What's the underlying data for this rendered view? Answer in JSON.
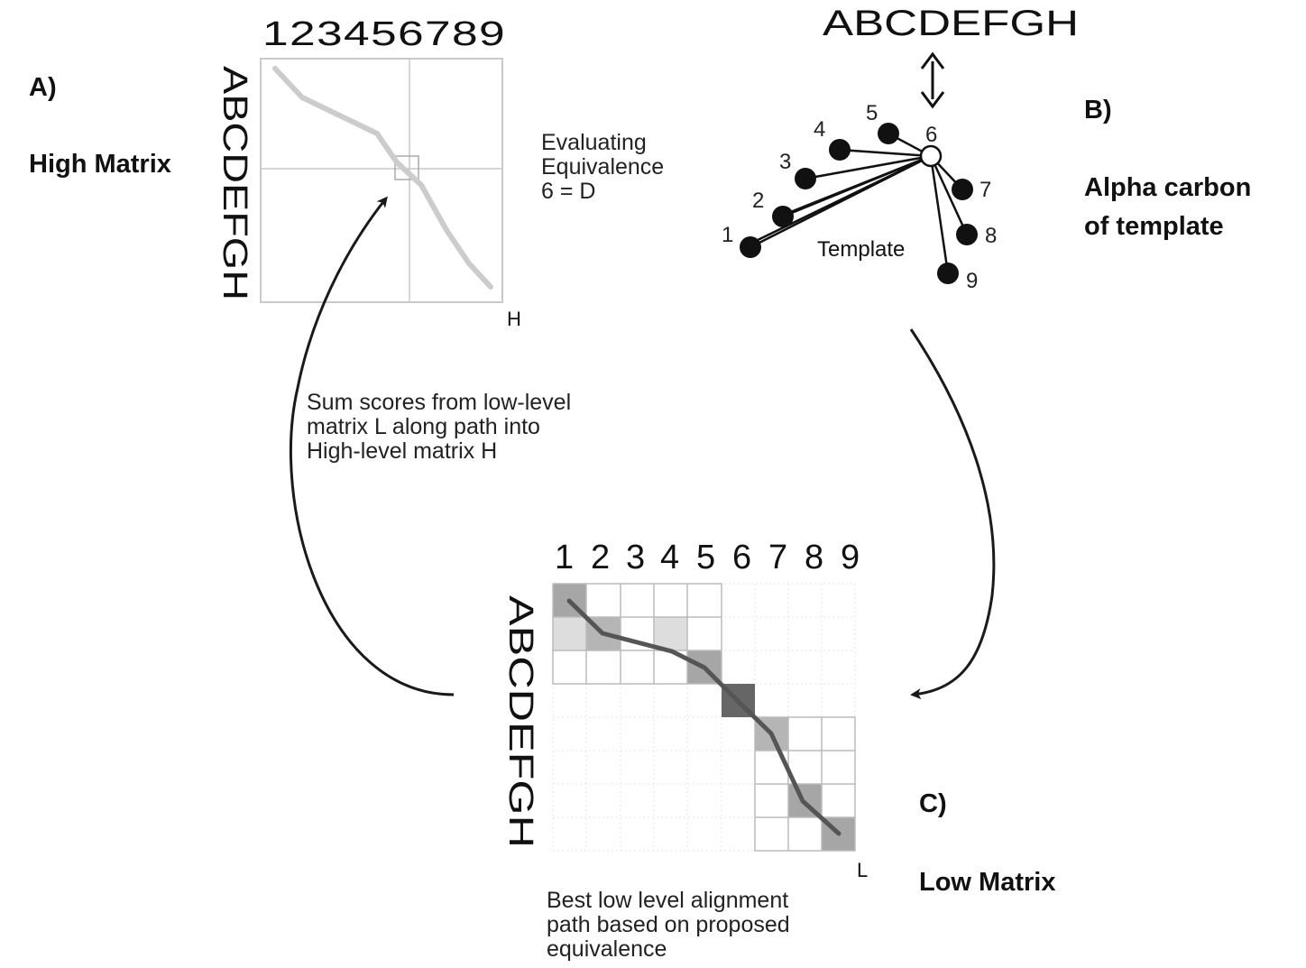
{
  "panel_a": {
    "tag": "A)",
    "title": "High Matrix",
    "column_header": "123456789",
    "row_header": "ABCDEFGH",
    "corner_label": "H"
  },
  "panel_b": {
    "tag": "B)",
    "title_line1": "Alpha carbon",
    "title_line2": "of template",
    "sequence": "ABCDEFGH",
    "template_label": "Template",
    "atoms": [
      "1",
      "2",
      "3",
      "4",
      "5",
      "6",
      "7",
      "8",
      "9"
    ]
  },
  "panel_c": {
    "tag": "C)",
    "title": "Low Matrix",
    "column_header": [
      "1",
      "2",
      "3",
      "4",
      "5",
      "6",
      "7",
      "8",
      "9"
    ],
    "row_header": "ABCDEFGH",
    "corner_label": "L"
  },
  "notes": {
    "evaluating": [
      "Evaluating",
      "Equivalence",
      "6  =  D"
    ],
    "sum_scores": [
      "Sum  scores  from  low-level",
      "matrix  L  along  path  into",
      "High-level  matrix  H"
    ],
    "best_path": [
      "Best  low  level  alignment",
      "path  based  on  proposed",
      "equivalence"
    ]
  },
  "colors": {
    "arrow": "#1a1a1a",
    "grid": "#bbbbbb",
    "high_path": "#cccccc",
    "low_path": "#555555",
    "cell_dark": "#666666",
    "cell_mid": "#a6a6a6",
    "cell_light": "#dddddd"
  }
}
